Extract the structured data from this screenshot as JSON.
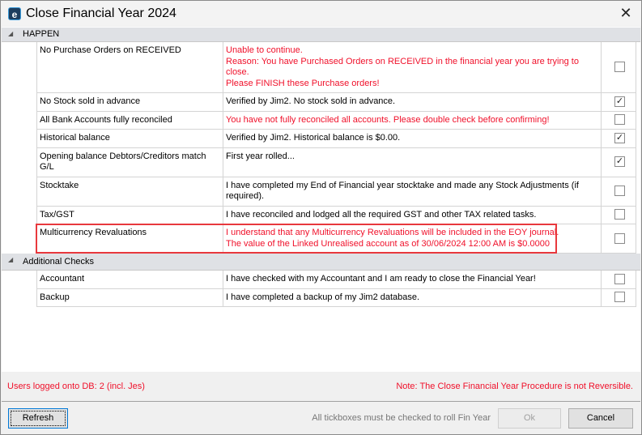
{
  "window": {
    "title": "Close Financial Year 2024",
    "logo": "Jim2"
  },
  "groups": [
    {
      "label": "HAPPEN",
      "rows": [
        {
          "check": "No Purchase Orders on RECEIVED",
          "lines": [
            "Unable to continue.",
            "Reason: You have Purchased Orders on RECEIVED in the financial year you are trying to close.",
            "Please FINISH these Purchase orders!"
          ],
          "error": true,
          "checked": false
        },
        {
          "check": "No Stock sold in advance",
          "lines": [
            "Verified by Jim2. No stock sold in advance."
          ],
          "error": false,
          "checked": true
        },
        {
          "check": "All Bank Accounts fully reconciled",
          "lines": [
            "You have not fully reconciled all accounts. Please double check before confirming!"
          ],
          "error": true,
          "checked": false
        },
        {
          "check": "Historical balance",
          "lines": [
            "Verified by Jim2. Historical balance is $0.00."
          ],
          "error": false,
          "checked": true
        },
        {
          "check": "Opening balance Debtors/Creditors match G/L",
          "lines": [
            "First year rolled..."
          ],
          "error": false,
          "checked": true
        },
        {
          "check": "Stocktake",
          "lines": [
            "I have completed my End of Financial year stocktake and made any Stock Adjustments (if",
            "required)."
          ],
          "error": false,
          "checked": false
        },
        {
          "check": "Tax/GST",
          "lines": [
            "I have reconciled and lodged all the required GST and other TAX related tasks."
          ],
          "error": false,
          "checked": false
        },
        {
          "check": "Multicurrency Revaluations",
          "lines": [
            "I understand that any Multicurrency Revaluations will be included in the EOY journal.",
            "The value of the Linked Unrealised account as of 30/06/2024 12:00 AM is $0.0000"
          ],
          "error": true,
          "checked": false,
          "highlighted": true
        }
      ]
    },
    {
      "label": "Additional Checks",
      "rows": [
        {
          "check": "Accountant",
          "lines": [
            "I have checked with my Accountant and I am ready to close the Financial Year!"
          ],
          "error": false,
          "checked": false
        },
        {
          "check": "Backup",
          "lines": [
            "I have completed a backup of my Jim2 database."
          ],
          "error": false,
          "checked": false
        }
      ]
    }
  ],
  "status": {
    "users": "Users logged onto DB: 2 (incl. Jes)",
    "note": "Note: The Close Financial Year Procedure is not Reversible."
  },
  "footer": {
    "refresh": "Refresh",
    "hint": "All tickboxes must be checked to roll Fin Year",
    "ok": "Ok",
    "cancel": "Cancel"
  },
  "colors": {
    "error": "#f0102a",
    "highlight": "#e8383d",
    "group": "#dfe1e5"
  }
}
